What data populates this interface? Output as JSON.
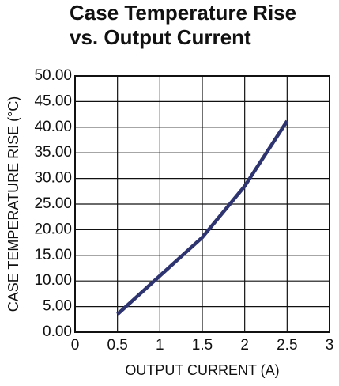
{
  "chart_data": {
    "type": "line",
    "title": [
      "Case Temperature Rise",
      "vs. Output Current"
    ],
    "x_label": "OUTPUT CURRENT (A)",
    "y_label": "CASE TEMPERATURE RISE (°C)",
    "x": [
      0.5,
      1,
      1.5,
      2,
      2.5
    ],
    "series": [
      {
        "name": null,
        "color": "#2e3470",
        "values": [
          3.5,
          11,
          18.5,
          28.5,
          41.2
        ]
      }
    ],
    "xlim": [
      0,
      3
    ],
    "xticks": [
      0,
      0.5,
      1,
      1.5,
      2,
      2.5,
      3
    ],
    "ylim": [
      0,
      50
    ],
    "yticks": [
      {
        "value": 0,
        "label": "0.00"
      },
      {
        "value": 5,
        "label": "5.00"
      },
      {
        "value": 10,
        "label": "10.00"
      },
      {
        "value": 15,
        "label": "15.00"
      },
      {
        "value": 20,
        "label": "20.00"
      },
      {
        "value": 25,
        "label": "25.00"
      },
      {
        "value": 30,
        "label": "30.00"
      },
      {
        "value": 35,
        "label": "35.00"
      },
      {
        "value": 40,
        "label": "40.00"
      },
      {
        "value": 45,
        "label": "45.00"
      },
      {
        "value": 50,
        "label": "50.00"
      }
    ],
    "grid": true
  }
}
